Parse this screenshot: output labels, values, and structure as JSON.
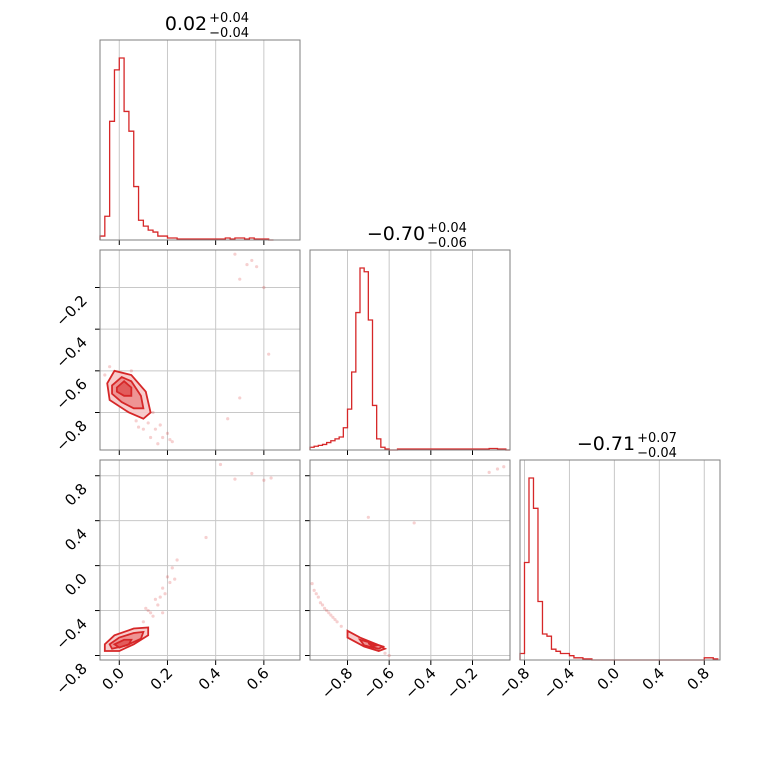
{
  "chart_data": [
    {
      "type": "histogram",
      "panel": "row1-col1",
      "title": {
        "value": "0.02",
        "plus": "+0.04",
        "minus": "−0.04"
      },
      "xlim": [
        -0.08,
        0.75
      ],
      "xticks": [
        0.0,
        0.2,
        0.4,
        0.6
      ],
      "bin_edges": [
        -0.08,
        -0.06,
        -0.04,
        -0.02,
        0.0,
        0.02,
        0.04,
        0.06,
        0.08,
        0.1,
        0.12,
        0.14,
        0.16,
        0.18,
        0.2,
        0.22,
        0.24,
        0.4,
        0.42,
        0.44,
        0.46,
        0.48,
        0.5,
        0.52,
        0.54,
        0.56,
        0.58,
        0.6,
        0.62,
        0.64
      ],
      "counts": [
        0.02,
        0.12,
        0.6,
        0.86,
        0.92,
        0.65,
        0.55,
        0.27,
        0.1,
        0.07,
        0.05,
        0.04,
        0.02,
        0.02,
        0.01,
        0.01,
        0.005,
        0.005,
        0.005,
        0.01,
        0.005,
        0.01,
        0.01,
        0.005,
        0.01,
        0.005,
        0.005,
        0.005,
        0.0
      ]
    },
    {
      "type": "histogram",
      "panel": "row2-col2",
      "title": {
        "value": "−0.70",
        "plus": "+0.04",
        "minus": "−0.06"
      },
      "xlim": [
        -0.98,
        -0.02
      ],
      "xticks": [
        -0.8,
        -0.6,
        -0.4,
        -0.2
      ],
      "bin_edges": [
        -0.98,
        -0.96,
        -0.94,
        -0.92,
        -0.9,
        -0.88,
        -0.86,
        -0.84,
        -0.82,
        -0.8,
        -0.78,
        -0.76,
        -0.74,
        -0.72,
        -0.7,
        -0.68,
        -0.66,
        -0.64,
        -0.62,
        -0.6,
        -0.58,
        -0.56,
        -0.14,
        -0.12,
        -0.1,
        -0.08,
        -0.06,
        -0.04,
        -0.02
      ],
      "counts": [
        0.015,
        0.02,
        0.025,
        0.03,
        0.04,
        0.05,
        0.06,
        0.07,
        0.12,
        0.22,
        0.42,
        0.74,
        0.98,
        0.96,
        0.7,
        0.24,
        0.06,
        0.015,
        0.005,
        0.0,
        0.0,
        0.005,
        0.005,
        0.008,
        0.008,
        0.005,
        0.005,
        0.0
      ]
    },
    {
      "type": "histogram",
      "panel": "row3-col3",
      "title": {
        "value": "−0.71",
        "plus": "+0.07",
        "minus": "−0.04"
      },
      "xlim": [
        -0.84,
        0.94
      ],
      "xticks": [
        -0.8,
        -0.4,
        0.0,
        0.4,
        0.8
      ],
      "bin_edges": [
        -0.84,
        -0.8,
        -0.76,
        -0.72,
        -0.68,
        -0.64,
        -0.6,
        -0.56,
        -0.52,
        -0.48,
        -0.44,
        -0.4,
        -0.36,
        -0.32,
        -0.28,
        -0.24,
        -0.2,
        -0.16,
        0.8,
        0.84,
        0.88,
        0.92
      ],
      "counts": [
        0.03,
        0.45,
        0.84,
        0.7,
        0.27,
        0.12,
        0.11,
        0.05,
        0.04,
        0.03,
        0.03,
        0.02,
        0.01,
        0.01,
        0.005,
        0.005,
        0.0,
        0.0,
        0.01,
        0.01,
        0.005
      ]
    },
    {
      "type": "scatter",
      "panel": "row2-col1",
      "xlim": [
        -0.08,
        0.75
      ],
      "ylim": [
        -0.98,
        -0.02
      ],
      "xticks": [
        0.0,
        0.2,
        0.4,
        0.6
      ],
      "yticks": [
        -0.8,
        -0.6,
        -0.4,
        -0.2
      ],
      "contours": [
        [
          [
            -0.05,
            -0.66
          ],
          [
            -0.02,
            -0.6
          ],
          [
            0.05,
            -0.62
          ],
          [
            0.11,
            -0.7
          ],
          [
            0.13,
            -0.8
          ],
          [
            0.1,
            -0.83
          ],
          [
            0.04,
            -0.8
          ],
          [
            -0.04,
            -0.74
          ]
        ],
        [
          [
            -0.03,
            -0.67
          ],
          [
            0.01,
            -0.63
          ],
          [
            0.05,
            -0.65
          ],
          [
            0.09,
            -0.72
          ],
          [
            0.1,
            -0.78
          ],
          [
            0.06,
            -0.78
          ],
          [
            0.01,
            -0.75
          ],
          [
            -0.03,
            -0.71
          ]
        ],
        [
          [
            -0.01,
            -0.68
          ],
          [
            0.02,
            -0.65
          ],
          [
            0.05,
            -0.68
          ],
          [
            0.05,
            -0.72
          ],
          [
            0.02,
            -0.72
          ],
          [
            -0.01,
            -0.7
          ]
        ]
      ],
      "points": [
        [
          0.12,
          -0.85
        ],
        [
          0.15,
          -0.88
        ],
        [
          0.17,
          -0.86
        ],
        [
          0.2,
          -0.9
        ],
        [
          0.22,
          -0.94
        ],
        [
          0.14,
          -0.8
        ],
        [
          0.18,
          -0.92
        ],
        [
          0.1,
          -0.88
        ],
        [
          0.13,
          -0.92
        ],
        [
          0.08,
          -0.87
        ],
        [
          0.05,
          -0.6
        ],
        [
          -0.04,
          -0.58
        ],
        [
          -0.06,
          -0.62
        ],
        [
          0.07,
          -0.84
        ],
        [
          0.16,
          -0.95
        ],
        [
          0.21,
          -0.93
        ],
        [
          0.45,
          -0.83
        ],
        [
          0.5,
          -0.16
        ],
        [
          0.55,
          -0.07
        ],
        [
          0.6,
          -0.2
        ],
        [
          0.62,
          -0.52
        ],
        [
          0.57,
          -0.1
        ],
        [
          0.48,
          -0.04
        ],
        [
          0.5,
          -0.73
        ],
        [
          0.53,
          -0.09
        ]
      ]
    },
    {
      "type": "scatter",
      "panel": "row3-col1",
      "xlim": [
        -0.08,
        0.75
      ],
      "ylim": [
        -0.84,
        0.94
      ],
      "xticks": [
        0.0,
        0.2,
        0.4,
        0.6
      ],
      "yticks": [
        -0.8,
        -0.4,
        0.0,
        0.4,
        0.8
      ],
      "contours": [
        [
          [
            -0.06,
            -0.7
          ],
          [
            -0.02,
            -0.62
          ],
          [
            0.06,
            -0.56
          ],
          [
            0.12,
            -0.55
          ],
          [
            0.12,
            -0.62
          ],
          [
            0.06,
            -0.7
          ],
          [
            0.0,
            -0.76
          ],
          [
            -0.06,
            -0.76
          ]
        ],
        [
          [
            -0.04,
            -0.7
          ],
          [
            0.0,
            -0.64
          ],
          [
            0.06,
            -0.6
          ],
          [
            0.1,
            -0.59
          ],
          [
            0.09,
            -0.65
          ],
          [
            0.03,
            -0.71
          ],
          [
            -0.03,
            -0.74
          ]
        ],
        [
          [
            -0.02,
            -0.7
          ],
          [
            0.02,
            -0.66
          ],
          [
            0.05,
            -0.66
          ],
          [
            0.04,
            -0.7
          ],
          [
            0.0,
            -0.73
          ]
        ]
      ],
      "points": [
        [
          0.12,
          -0.4
        ],
        [
          0.15,
          -0.3
        ],
        [
          0.18,
          -0.2
        ],
        [
          0.2,
          -0.1
        ],
        [
          0.22,
          -0.02
        ],
        [
          0.14,
          -0.45
        ],
        [
          0.16,
          -0.35
        ],
        [
          0.19,
          -0.25
        ],
        [
          0.21,
          -0.15
        ],
        [
          0.1,
          -0.5
        ],
        [
          0.13,
          -0.42
        ],
        [
          0.17,
          -0.28
        ],
        [
          0.24,
          0.05
        ],
        [
          0.36,
          0.25
        ],
        [
          0.48,
          0.77
        ],
        [
          0.55,
          0.82
        ],
        [
          0.6,
          0.76
        ],
        [
          0.42,
          0.9
        ],
        [
          0.63,
          0.78
        ],
        [
          0.11,
          -0.38
        ],
        [
          0.18,
          -0.42
        ],
        [
          0.23,
          -0.12
        ]
      ]
    },
    {
      "type": "scatter",
      "panel": "row3-col2",
      "xlim": [
        -0.98,
        -0.02
      ],
      "ylim": [
        -0.84,
        0.94
      ],
      "xticks": [
        -0.8,
        -0.6,
        -0.4,
        -0.2
      ],
      "yticks": [
        -0.8,
        -0.4,
        0.0,
        0.4,
        0.8
      ],
      "contours": [
        [
          [
            -0.8,
            -0.58
          ],
          [
            -0.74,
            -0.64
          ],
          [
            -0.66,
            -0.7
          ],
          [
            -0.62,
            -0.74
          ],
          [
            -0.65,
            -0.76
          ],
          [
            -0.72,
            -0.72
          ],
          [
            -0.8,
            -0.64
          ]
        ],
        [
          [
            -0.74,
            -0.66
          ],
          [
            -0.68,
            -0.69
          ],
          [
            -0.63,
            -0.72
          ],
          [
            -0.65,
            -0.74
          ],
          [
            -0.72,
            -0.71
          ]
        ],
        [
          [
            -0.7,
            -0.69
          ],
          [
            -0.66,
            -0.71
          ],
          [
            -0.68,
            -0.72
          ]
        ]
      ],
      "points": [
        [
          -0.97,
          -0.16
        ],
        [
          -0.96,
          -0.22
        ],
        [
          -0.94,
          -0.28
        ],
        [
          -0.93,
          -0.33
        ],
        [
          -0.91,
          -0.38
        ],
        [
          -0.89,
          -0.42
        ],
        [
          -0.87,
          -0.46
        ],
        [
          -0.85,
          -0.5
        ],
        [
          -0.83,
          -0.54
        ],
        [
          -0.95,
          -0.25
        ],
        [
          -0.92,
          -0.35
        ],
        [
          -0.9,
          -0.4
        ],
        [
          -0.88,
          -0.44
        ],
        [
          -0.86,
          -0.48
        ],
        [
          -0.6,
          -0.8
        ],
        [
          -0.62,
          -0.78
        ],
        [
          -0.7,
          0.43
        ],
        [
          -0.48,
          0.38
        ],
        [
          -0.12,
          0.83
        ],
        [
          -0.08,
          0.86
        ],
        [
          -0.05,
          0.88
        ]
      ]
    }
  ]
}
